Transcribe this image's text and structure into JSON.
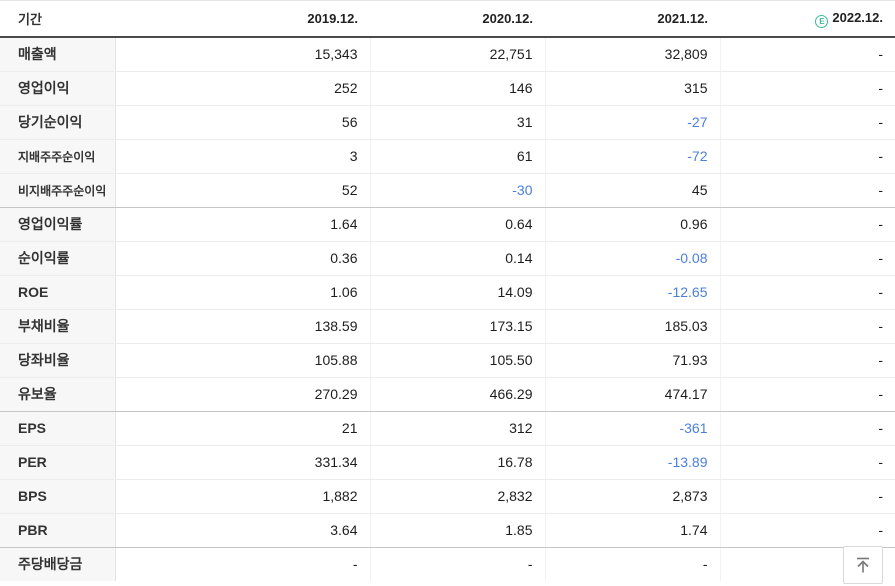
{
  "colors": {
    "negative_value": "#4b7fdd",
    "estimate_green": "#3dbb96",
    "header_rule": "#4a4a4a",
    "label_cell_bg": "#f7f7f7"
  },
  "header": {
    "period_label": "기간",
    "columns": [
      {
        "label": "2019.12.",
        "estimate": false
      },
      {
        "label": "2020.12.",
        "estimate": false
      },
      {
        "label": "2021.12.",
        "estimate": false
      },
      {
        "label": "2022.12.",
        "estimate": true,
        "estimate_icon": "E"
      }
    ]
  },
  "rows": [
    {
      "label": "매출액",
      "sub": false,
      "group_end": false,
      "values": [
        "15,343",
        "22,751",
        "32,809",
        "-"
      ],
      "neg": [
        false,
        false,
        false,
        false
      ]
    },
    {
      "label": "영업이익",
      "sub": false,
      "group_end": false,
      "values": [
        "252",
        "146",
        "315",
        "-"
      ],
      "neg": [
        false,
        false,
        false,
        false
      ]
    },
    {
      "label": "당기순이익",
      "sub": false,
      "group_end": false,
      "values": [
        "56",
        "31",
        "-27",
        "-"
      ],
      "neg": [
        false,
        false,
        true,
        false
      ]
    },
    {
      "label": "지배주주순이익",
      "sub": true,
      "group_end": false,
      "values": [
        "3",
        "61",
        "-72",
        "-"
      ],
      "neg": [
        false,
        false,
        true,
        false
      ]
    },
    {
      "label": "비지배주주순이익",
      "sub": true,
      "group_end": true,
      "values": [
        "52",
        "-30",
        "45",
        "-"
      ],
      "neg": [
        false,
        true,
        false,
        false
      ]
    },
    {
      "label": "영업이익률",
      "sub": false,
      "group_end": false,
      "values": [
        "1.64",
        "0.64",
        "0.96",
        "-"
      ],
      "neg": [
        false,
        false,
        false,
        false
      ]
    },
    {
      "label": "순이익률",
      "sub": false,
      "group_end": false,
      "values": [
        "0.36",
        "0.14",
        "-0.08",
        "-"
      ],
      "neg": [
        false,
        false,
        true,
        false
      ]
    },
    {
      "label": "ROE",
      "sub": false,
      "group_end": false,
      "values": [
        "1.06",
        "14.09",
        "-12.65",
        "-"
      ],
      "neg": [
        false,
        false,
        true,
        false
      ]
    },
    {
      "label": "부채비율",
      "sub": false,
      "group_end": false,
      "values": [
        "138.59",
        "173.15",
        "185.03",
        "-"
      ],
      "neg": [
        false,
        false,
        false,
        false
      ]
    },
    {
      "label": "당좌비율",
      "sub": false,
      "group_end": false,
      "values": [
        "105.88",
        "105.50",
        "71.93",
        "-"
      ],
      "neg": [
        false,
        false,
        false,
        false
      ]
    },
    {
      "label": "유보율",
      "sub": false,
      "group_end": true,
      "values": [
        "270.29",
        "466.29",
        "474.17",
        "-"
      ],
      "neg": [
        false,
        false,
        false,
        false
      ]
    },
    {
      "label": "EPS",
      "sub": false,
      "group_end": false,
      "values": [
        "21",
        "312",
        "-361",
        "-"
      ],
      "neg": [
        false,
        false,
        true,
        false
      ]
    },
    {
      "label": "PER",
      "sub": false,
      "group_end": false,
      "values": [
        "331.34",
        "16.78",
        "-13.89",
        "-"
      ],
      "neg": [
        false,
        false,
        true,
        false
      ]
    },
    {
      "label": "BPS",
      "sub": false,
      "group_end": false,
      "values": [
        "1,882",
        "2,832",
        "2,873",
        "-"
      ],
      "neg": [
        false,
        false,
        false,
        false
      ]
    },
    {
      "label": "PBR",
      "sub": false,
      "group_end": true,
      "values": [
        "3.64",
        "1.85",
        "1.74",
        "-"
      ],
      "neg": [
        false,
        false,
        false,
        false
      ]
    },
    {
      "label": "주당배당금",
      "sub": false,
      "group_end": false,
      "last": true,
      "values": [
        "-",
        "-",
        "-",
        "-"
      ],
      "neg": [
        false,
        false,
        false,
        false
      ]
    }
  ],
  "scroll_top_button": {
    "icon": "arrow-up-to-top-icon"
  }
}
